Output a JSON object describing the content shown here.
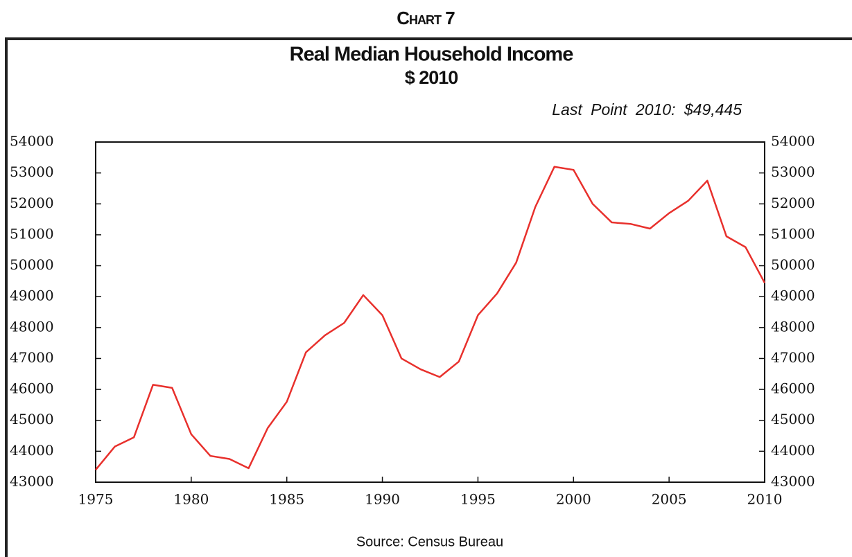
{
  "chart_data": {
    "type": "line",
    "label": "Chart 7",
    "title": "Real Median Household Income",
    "subtitle": "$ 2010",
    "annotation": "Last Point 2010: $49,445",
    "source": "Source: Census Bureau",
    "x": [
      1975,
      1976,
      1977,
      1978,
      1979,
      1980,
      1981,
      1982,
      1983,
      1984,
      1985,
      1986,
      1987,
      1988,
      1989,
      1990,
      1991,
      1992,
      1993,
      1994,
      1995,
      1996,
      1997,
      1998,
      1999,
      2000,
      2001,
      2002,
      2003,
      2004,
      2005,
      2006,
      2007,
      2008,
      2009,
      2010
    ],
    "series": [
      {
        "color": "#e8302c",
        "values": [
          43400,
          44150,
          44450,
          46150,
          46050,
          44550,
          43850,
          43750,
          43450,
          44750,
          45600,
          47200,
          47750,
          48150,
          49050,
          48400,
          47000,
          46650,
          46400,
          46900,
          48400,
          49100,
          50100,
          51900,
          53200,
          53100,
          52000,
          51400,
          51350,
          51200,
          51700,
          52100,
          52750,
          50950,
          50600,
          49445
        ]
      }
    ],
    "xlim": [
      1975,
      2010
    ],
    "xticks": [
      1975,
      1980,
      1985,
      1990,
      1995,
      2000,
      2005,
      2010
    ],
    "ylim": [
      43000,
      54000
    ],
    "yticks": [
      43000,
      44000,
      45000,
      46000,
      47000,
      48000,
      49000,
      50000,
      51000,
      52000,
      53000,
      54000
    ],
    "grid": false
  }
}
